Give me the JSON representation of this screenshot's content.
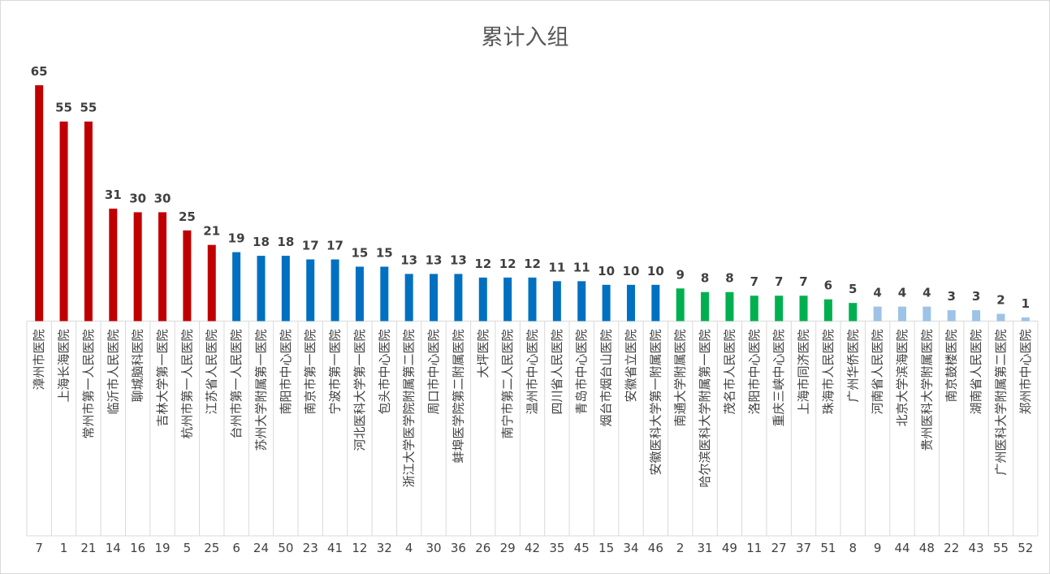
{
  "chart_data": {
    "type": "bar",
    "title": "累计入组",
    "xlabel": "",
    "ylabel": "",
    "ylim": [
      0,
      65
    ],
    "grid": false,
    "legend": "none",
    "categories": [
      "漳州市医院",
      "上海长海医院",
      "常州市第一人民医院",
      "临沂市人民医院",
      "聊城脑科医院",
      "吉林大学第一医院",
      "杭州市第一人民医院",
      "江苏省人民医院",
      "台州市第一人民医院",
      "苏州大学附属第一医院",
      "南阳市中心医院",
      "南京市第一医院",
      "宁波市第一医院",
      "河北医科大学第一医院",
      "包头市中心医院",
      "浙江大学医学院附属第二医院",
      "周口市中心医院",
      "蚌埠医学院第二附属医院",
      "大坪医院",
      "南宁市第二人民医院",
      "温州市中心医院",
      "四川省人民医院",
      "青岛市中心医院",
      "烟台市烟台山医院",
      "安徽省立医院",
      "安徽医科大学第一附属医院",
      "南通大学附属医院",
      "哈尔滨医科大学附属第一医院",
      "茂名市人民医院",
      "洛阳市中心医院",
      "重庆三峡中心医院",
      "上海市同济医院",
      "珠海市人民医院",
      "广州华侨医院",
      "河南省人民医院",
      "北京大学滨海医院",
      "贵州医科大学附属医院",
      "南京鼓楼医院",
      "湖南省人民医院",
      "广州医科大学附属第二医院",
      "郑州市中心医院"
    ],
    "values": [
      65,
      55,
      55,
      31,
      30,
      30,
      25,
      21,
      19,
      18,
      18,
      17,
      17,
      15,
      15,
      13,
      13,
      13,
      12,
      12,
      12,
      11,
      11,
      10,
      10,
      10,
      9,
      8,
      8,
      7,
      7,
      7,
      6,
      5,
      4,
      4,
      4,
      3,
      3,
      2,
      1
    ],
    "site_ids": [
      "7",
      "1",
      "21",
      "14",
      "16",
      "19",
      "5",
      "25",
      "6",
      "24",
      "50",
      "23",
      "41",
      "12",
      "32",
      "4",
      "30",
      "36",
      "26",
      "29",
      "42",
      "35",
      "45",
      "15",
      "34",
      "46",
      "2",
      "31",
      "49",
      "11",
      "27",
      "37",
      "51",
      "8",
      "9",
      "44",
      "48",
      "22",
      "43",
      "55",
      "52"
    ],
    "colors": {
      "red": "#c00000",
      "blue": "#0070c0",
      "green": "#00b050",
      "light_blue": "#9dc3e6",
      "axis": "#d9d9d9",
      "label_text": "#404040"
    },
    "color_groups": [
      {
        "color": "red",
        "count": 8
      },
      {
        "color": "blue",
        "count": 18
      },
      {
        "color": "green",
        "count": 8
      },
      {
        "color": "light_blue",
        "count": 7
      }
    ]
  }
}
